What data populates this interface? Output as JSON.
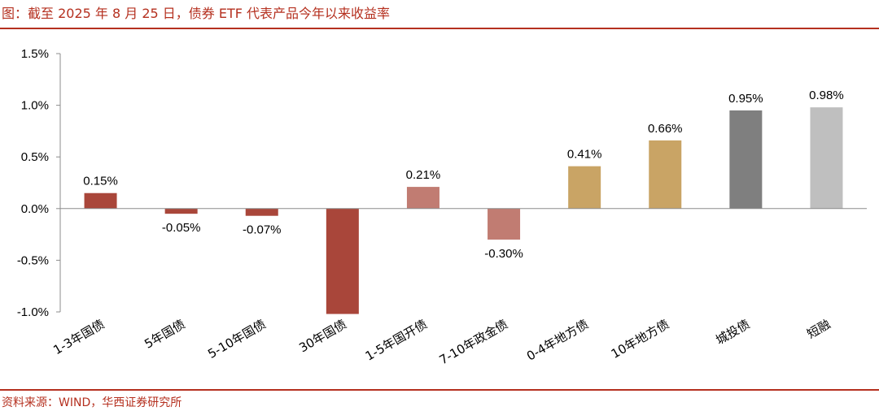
{
  "header": {
    "title": "图：截至 2025 年 8 月 25 日，债券 ETF 代表产品今年以来收益率"
  },
  "footer": {
    "source": "资料来源：WIND，华西证券研究所"
  },
  "chart_data": {
    "type": "bar",
    "title": "",
    "xlabel": "",
    "ylabel": "",
    "categories": [
      "1-3年国债",
      "5年国债",
      "5-10年国债",
      "30年国债",
      "1-5年国开债",
      "7-10年政金债",
      "0-4年地方债",
      "10年地方债",
      "城投债",
      "短融"
    ],
    "values": [
      0.15,
      -0.05,
      -0.07,
      -1.02,
      0.21,
      -0.3,
      0.41,
      0.66,
      0.95,
      0.98
    ],
    "data_labels": [
      "0.15%",
      "-0.05%",
      "-0.07%",
      "",
      "0.21%",
      "-0.30%",
      "0.41%",
      "0.66%",
      "0.95%",
      "0.98%"
    ],
    "bar_colors": [
      "#a9463a",
      "#a9463a",
      "#a9463a",
      "#a9463a",
      "#c17c72",
      "#c17c72",
      "#c9a465",
      "#c9a465",
      "#7f7f7f",
      "#bfbfbf"
    ],
    "ylim": [
      -1.0,
      1.5
    ],
    "yticks": [
      1.5,
      1.0,
      0.5,
      0.0,
      -0.5,
      -1.0
    ],
    "ytick_labels": [
      "1.5%",
      "1.0%",
      "0.5%",
      "0.0%",
      "-0.5%",
      "-1.0%"
    ],
    "grid": false,
    "legend": "none"
  },
  "colors": {
    "accent": "#b5301f",
    "axis": "#8c8c8c"
  }
}
